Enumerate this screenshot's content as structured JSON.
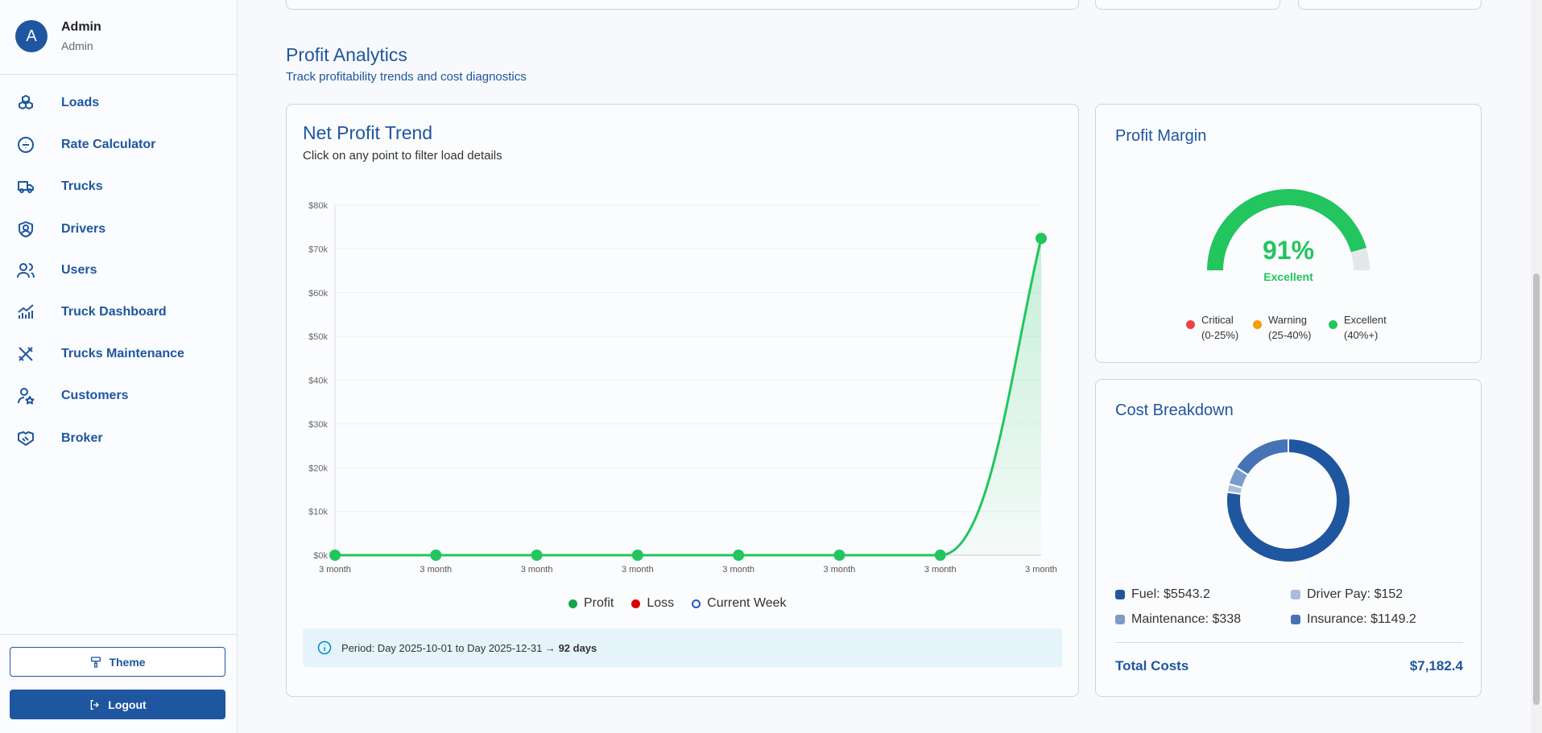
{
  "user": {
    "initial": "A",
    "name": "Admin",
    "role": "Admin"
  },
  "nav": [
    {
      "label": "Loads",
      "icon": "boxes-icon"
    },
    {
      "label": "Rate Calculator",
      "icon": "divide-circle-icon"
    },
    {
      "label": "Trucks",
      "icon": "truck-icon"
    },
    {
      "label": "Drivers",
      "icon": "shield-user-icon"
    },
    {
      "label": "Users",
      "icon": "users-icon"
    },
    {
      "label": "Truck Dashboard",
      "icon": "chart-bars-icon"
    },
    {
      "label": "Trucks Maintenance",
      "icon": "tools-icon"
    },
    {
      "label": "Customers",
      "icon": "user-star-icon"
    },
    {
      "label": "Broker",
      "icon": "handshake-icon"
    }
  ],
  "buttons": {
    "theme": "Theme",
    "logout": "Logout"
  },
  "section": {
    "title": "Profit Analytics",
    "subtitle": "Track profitability trends and cost diagnostics"
  },
  "trend": {
    "title": "Net Profit Trend",
    "subtitle": "Click on any point to filter load details",
    "legend": [
      "Profit",
      "Loss",
      "Current Week"
    ],
    "info_text": "Period: Day 2025-10-01 to Day 2025-12-31 →",
    "info_days": "92 days"
  },
  "margin": {
    "title": "Profit Margin",
    "value": "91%",
    "status": "Excellent",
    "legend": [
      {
        "label": "Critical",
        "range": "(0-25%)",
        "color": "#e94444"
      },
      {
        "label": "Warning",
        "range": "(25-40%)",
        "color": "#f59e0b"
      },
      {
        "label": "Excellent",
        "range": "(40%+)",
        "color": "#22c55e"
      }
    ]
  },
  "costs": {
    "title": "Cost Breakdown",
    "items": [
      {
        "label": "Fuel: $5543.2",
        "color": "#1f56a0"
      },
      {
        "label": "Driver Pay: $152",
        "color": "#a7bddb"
      },
      {
        "label": "Maintenance: $338",
        "color": "#7a9ccb"
      },
      {
        "label": "Insurance: $1149.2",
        "color": "#4673b6"
      }
    ],
    "total_label": "Total Costs",
    "total_value": "$7,182.4"
  },
  "chart_data": [
    {
      "type": "line",
      "title": "Net Profit Trend",
      "categories": [
        "3 month",
        "3 month",
        "3 month",
        "3 month",
        "3 month",
        "3 month",
        "3 month",
        "3 month"
      ],
      "series": [
        {
          "name": "Profit",
          "values": [
            0,
            0,
            0,
            0,
            0,
            0,
            0,
            72400
          ]
        }
      ],
      "yticks": [
        "$0k",
        "$10k",
        "$20k",
        "$30k",
        "$40k",
        "$50k",
        "$60k",
        "$70k",
        "$80k"
      ],
      "ylim": [
        0,
        80000
      ],
      "grid": true,
      "legend": "bottom",
      "color": "#22c55e"
    },
    {
      "type": "gauge",
      "value": 91,
      "max": 100,
      "color": "#22c55e"
    },
    {
      "type": "pie",
      "categories": [
        "Fuel",
        "Driver Pay",
        "Maintenance",
        "Insurance"
      ],
      "values": [
        5543.2,
        152,
        338,
        1149.2
      ],
      "colors": [
        "#1f56a0",
        "#a7bddb",
        "#7a9ccb",
        "#4673b6"
      ]
    }
  ]
}
